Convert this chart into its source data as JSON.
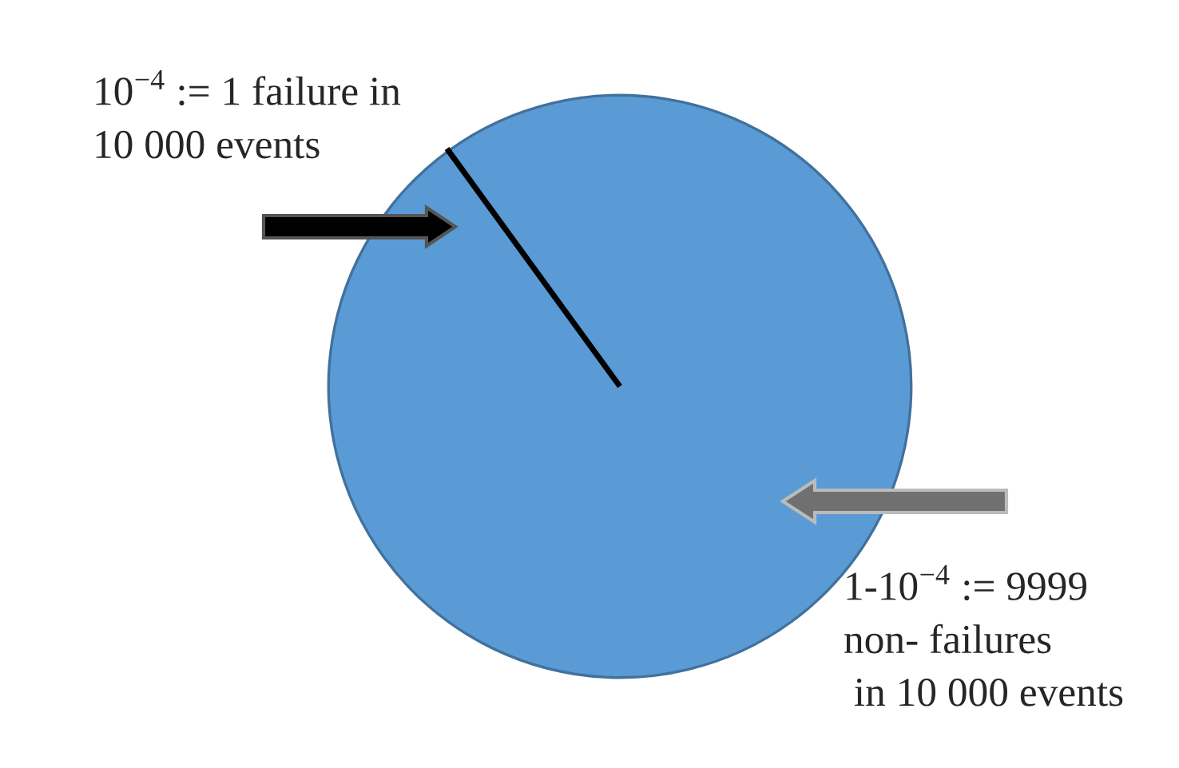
{
  "chart_data": {
    "type": "pie",
    "categories": [
      "10$^{−4}$ := 1 failure in\n10 000 events",
      "1-10$^{−4}$ := 9999\nnon- failures\n in 10 000 events"
    ],
    "values": [
      1,
      9999
    ],
    "colors": [
      "#000000",
      "#5b9bd5"
    ]
  }
}
